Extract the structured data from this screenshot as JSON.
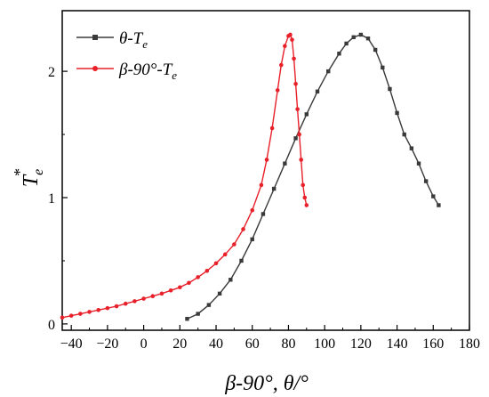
{
  "chart_data": {
    "type": "line",
    "xlabel": "β-90°, θ/°",
    "ylabel": "T_e^*",
    "xlim": [
      -45,
      180
    ],
    "ylim": [
      -0.05,
      2.48
    ],
    "xticks": [
      -40,
      -20,
      0,
      20,
      40,
      60,
      80,
      100,
      120,
      140,
      160,
      180
    ],
    "yticks": [
      0,
      1,
      2
    ],
    "grid": false,
    "legend_position": "top-left",
    "series": [
      {
        "name": "θ-Te",
        "legend_main": "θ-T",
        "legend_sub": "e",
        "color": "#3a3a3a",
        "marker": "square",
        "x": [
          24,
          30,
          36,
          42,
          48,
          54,
          60,
          66,
          72,
          78,
          84,
          90,
          96,
          102,
          108,
          112,
          116,
          120,
          124,
          128,
          132,
          136,
          140,
          144,
          148,
          152,
          156,
          160,
          163
        ],
        "y": [
          0.04,
          0.08,
          0.15,
          0.24,
          0.35,
          0.5,
          0.67,
          0.87,
          1.07,
          1.27,
          1.47,
          1.66,
          1.84,
          2.0,
          2.14,
          2.22,
          2.27,
          2.29,
          2.26,
          2.17,
          2.03,
          1.86,
          1.67,
          1.5,
          1.39,
          1.27,
          1.13,
          1.01,
          0.94
        ]
      },
      {
        "name": "β-90°-Te",
        "legend_main": "β-90°-T",
        "legend_sub": "e",
        "color": "#e8202a",
        "marker": "circle",
        "x": [
          -45,
          -40,
          -35,
          -30,
          -25,
          -20,
          -15,
          -10,
          -5,
          0,
          5,
          10,
          15,
          20,
          25,
          30,
          35,
          40,
          45,
          50,
          55,
          60,
          65,
          68,
          71,
          74,
          76,
          78,
          80,
          81,
          82,
          83,
          84,
          85,
          86,
          87,
          88,
          89,
          90
        ],
        "y": [
          0.05,
          0.065,
          0.08,
          0.095,
          0.11,
          0.125,
          0.14,
          0.16,
          0.18,
          0.2,
          0.22,
          0.24,
          0.265,
          0.29,
          0.325,
          0.37,
          0.42,
          0.48,
          0.55,
          0.63,
          0.75,
          0.9,
          1.1,
          1.3,
          1.55,
          1.85,
          2.05,
          2.2,
          2.28,
          2.29,
          2.25,
          2.1,
          1.9,
          1.7,
          1.5,
          1.3,
          1.1,
          1.0,
          0.94
        ]
      }
    ]
  }
}
